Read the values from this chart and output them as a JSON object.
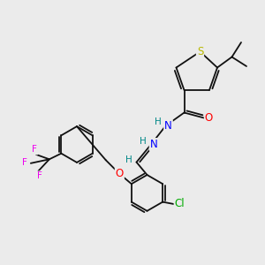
{
  "background_color": "#ebebeb",
  "atom_colors": {
    "S": "#b8b800",
    "N": "#0000ff",
    "O": "#ff0000",
    "Cl": "#00aa00",
    "F": "#ee00ee",
    "C": "#000000",
    "H": "#008888"
  },
  "bond_color": "#111111",
  "bond_width": 1.3,
  "font_size_atom": 8.5,
  "font_size_H": 7.5
}
